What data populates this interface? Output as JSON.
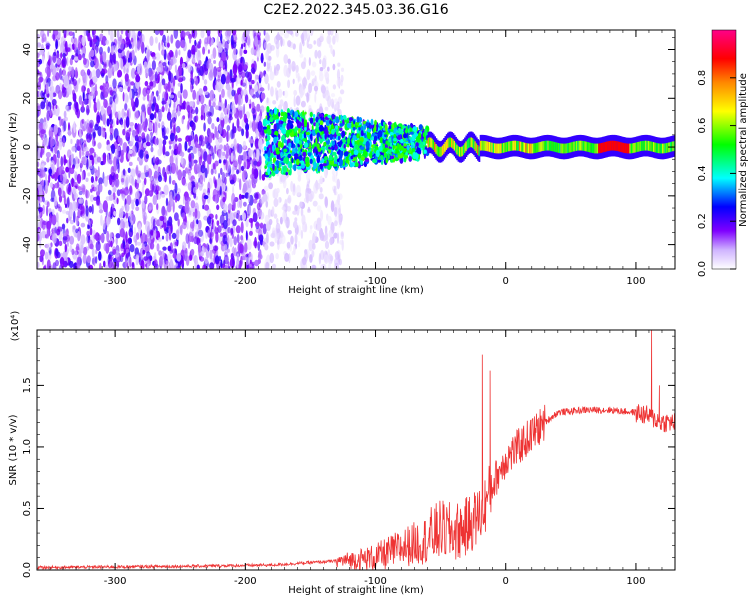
{
  "figure": {
    "title": "C2E2.2022.345.03.36.G16"
  },
  "chart_data": [
    {
      "type": "heatmap",
      "title": "",
      "xlabel": "Height of straight line (km)",
      "ylabel": "Frequency (Hz)",
      "xlim": [
        -360,
        130
      ],
      "ylim": [
        -50,
        48
      ],
      "xticks": [
        -300,
        -200,
        -100,
        0,
        100
      ],
      "yticks": [
        -40,
        -20,
        0,
        20,
        40
      ],
      "colorbar": {
        "label": "Normalized spectral amplitude",
        "range": [
          0.0,
          1.0
        ],
        "ticks": [
          0.0,
          0.2,
          0.4,
          0.6,
          0.8
        ],
        "colormap": [
          "#ffffff",
          "#cfb3ff",
          "#7f00ff",
          "#0000ff",
          "#00ffff",
          "#00ff00",
          "#ffff00",
          "#ff8800",
          "#ff0000",
          "#ff0088"
        ]
      },
      "regions": [
        {
          "name": "noise",
          "x_range": [
            -360,
            -185
          ],
          "freq_range": [
            -50,
            48
          ],
          "amplitude": 0.15
        },
        {
          "name": "sparse noise",
          "x_range": [
            -185,
            -125
          ],
          "freq_range": [
            -50,
            48
          ],
          "amplitude": 0.05
        },
        {
          "name": "broadband onset",
          "x_range": [
            -185,
            -60
          ],
          "freq_range": [
            -20,
            15
          ],
          "amplitude": 0.3
        },
        {
          "name": "signal",
          "x_range": [
            -60,
            130
          ],
          "freq_center": 0,
          "freq_halfwidth": 2,
          "amplitude": 0.85
        }
      ]
    },
    {
      "type": "line",
      "title": "",
      "xlabel": "Height of straight line (km)",
      "ylabel": "SNR (10 * v/v)",
      "y_multiplier": "(x10⁴)",
      "xlim": [
        -360,
        130
      ],
      "ylim": [
        0,
        1.95
      ],
      "xticks": [
        -300,
        -200,
        -100,
        0,
        100
      ],
      "yticks": [
        0.0,
        0.5,
        1.0,
        1.5
      ],
      "color": "#ee3333",
      "x": [
        -360,
        -250,
        -180,
        -150,
        -120,
        -100,
        -80,
        -60,
        -50,
        -40,
        -30,
        -25,
        -20,
        -15,
        -10,
        -5,
        0,
        10,
        20,
        30,
        40,
        60,
        80,
        100,
        110,
        120,
        130
      ],
      "y": [
        0.02,
        0.03,
        0.04,
        0.06,
        0.08,
        0.1,
        0.18,
        0.25,
        0.33,
        0.3,
        0.35,
        0.4,
        0.45,
        0.55,
        0.7,
        0.8,
        0.9,
        1.0,
        1.1,
        1.2,
        1.28,
        1.3,
        1.3,
        1.28,
        1.25,
        1.2,
        1.2
      ],
      "spikes": [
        {
          "x": -18,
          "y": 1.75
        },
        {
          "x": -12,
          "y": 1.62
        },
        {
          "x": 112,
          "y": 1.95
        },
        {
          "x": 118,
          "y": 1.5
        }
      ]
    }
  ]
}
